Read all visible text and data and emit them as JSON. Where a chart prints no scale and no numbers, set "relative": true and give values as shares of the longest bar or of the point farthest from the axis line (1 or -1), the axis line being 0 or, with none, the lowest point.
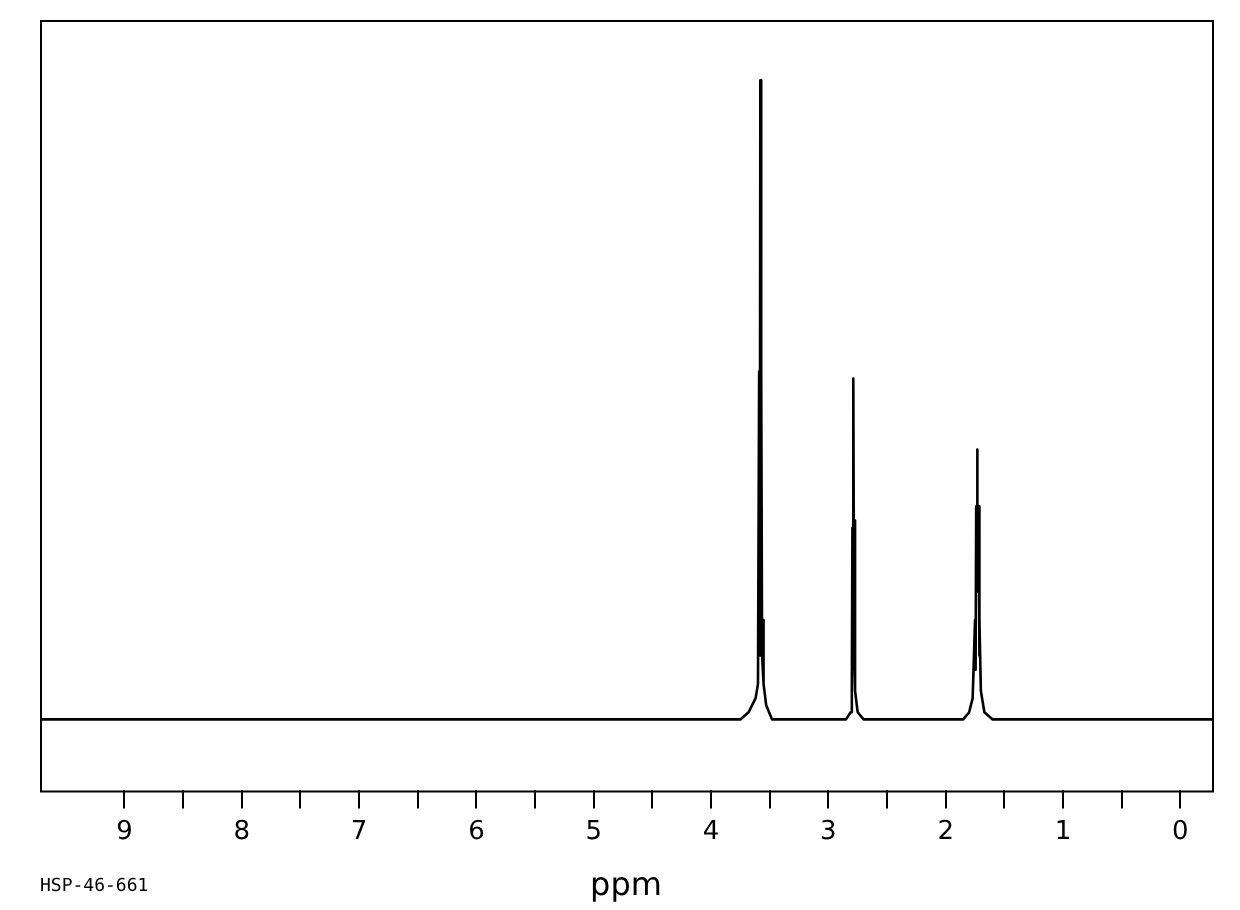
{
  "chart_data": {
    "type": "line",
    "relative": true,
    "xlabel": "ppm",
    "annotations": [
      "HSP-46-661"
    ],
    "xlim": [
      9.72,
      -0.27
    ],
    "xticks": [
      9,
      {
        "value": 8.5,
        "label": null
      },
      8,
      {
        "value": 7.5,
        "label": null
      },
      7,
      {
        "value": 6.5,
        "label": null
      },
      6,
      {
        "value": 5.5,
        "label": null
      },
      5,
      {
        "value": 4.5,
        "label": null
      },
      4,
      {
        "value": 3.5,
        "label": null
      },
      3,
      {
        "value": 2.5,
        "label": null
      },
      2,
      {
        "value": 1.5,
        "label": null
      },
      1,
      {
        "value": 0.5,
        "label": null
      },
      0
    ],
    "grid": false,
    "legend": false,
    "series": [
      {
        "color": "#000000",
        "x": [
          9.72,
          3.75,
          3.68,
          3.62,
          3.6,
          3.59,
          3.585,
          3.58,
          3.575,
          3.57,
          3.565,
          3.555,
          3.55,
          3.53,
          3.48,
          3.4,
          2.85,
          2.81,
          2.8,
          2.795,
          2.79,
          2.785,
          2.78,
          2.775,
          2.77,
          2.75,
          2.7,
          1.85,
          1.8,
          1.77,
          1.75,
          1.745,
          1.74,
          1.735,
          1.73,
          1.725,
          1.72,
          1.715,
          1.71,
          1.7,
          1.67,
          1.6,
          1.5,
          -0.27
        ],
        "values": [
          0.1,
          0.1,
          0.11,
          0.13,
          0.15,
          0.59,
          0.19,
          1,
          0.19,
          0.59,
          0.19,
          0.24,
          0.15,
          0.12,
          0.1,
          0.1,
          0.1,
          0.11,
          0.14,
          0.37,
          0.19,
          0.58,
          0.19,
          0.38,
          0.14,
          0.11,
          0.1,
          0.1,
          0.11,
          0.13,
          0.24,
          0.17,
          0.4,
          0.28,
          0.48,
          0.28,
          0.4,
          0.19,
          0.24,
          0.14,
          0.11,
          0.1,
          0.1,
          0.1
        ]
      }
    ]
  }
}
